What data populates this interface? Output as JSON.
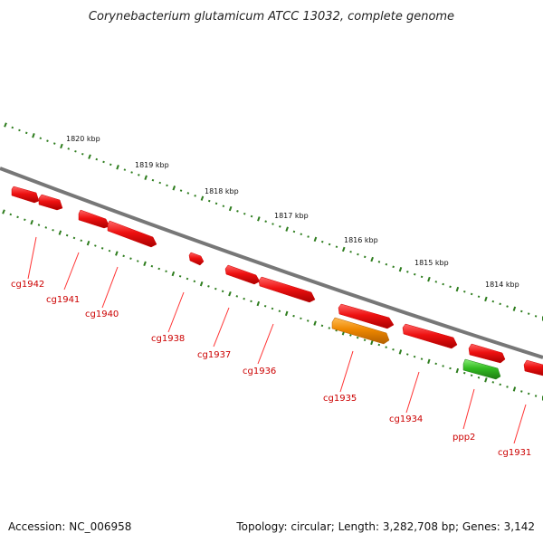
{
  "title": "Corynebacterium glutamicum ATCC 13032, complete genome",
  "footer": {
    "accession": "Accession: NC_006958",
    "topology": "Topology: circular; Length: 3,282,708 bp; Genes: 3,142"
  },
  "scale_labels": [
    "1820 kbp",
    "1819 kbp",
    "1818 kbp",
    "1817 kbp",
    "1816 kbp",
    "1815 kbp",
    "1814 kbp"
  ],
  "gene_labels": [
    "cg1942",
    "cg1941",
    "cg1940",
    "cg1938",
    "cg1937",
    "cg1936",
    "cg1935",
    "cg1934",
    "ppp2",
    "cg1931"
  ],
  "colors": {
    "backbone": "#777777",
    "tick": "#2e7d1e",
    "gene_red": "#ee1111",
    "gene_orange": "#ee8800",
    "gene_green": "#33bb22",
    "label": "#cc0000"
  }
}
